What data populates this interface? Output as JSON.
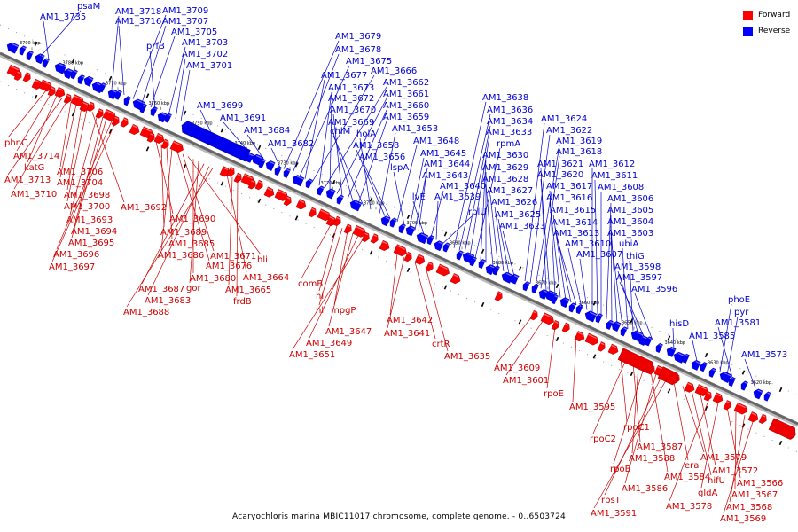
{
  "legend": {
    "forward_label": "Forward",
    "reverse_label": "Reverse",
    "forward_color": "#ff0000",
    "reverse_color": "#0000ff"
  },
  "caption": "Acaryochloris marina MBIC11017 chromosome, complete genome. - 0..6503724",
  "ticks": [
    "3790 kbp",
    "3780 kbp",
    "3770 kbp",
    "3760 kbp",
    "3750 kbp",
    "3740 kbp",
    "3730 kbp",
    "3720 kbp",
    "3710 kbp",
    "3700 kbp",
    "3690 kbp",
    "3680 kbp",
    "3670 kbp",
    "3660 kbp",
    "3650 kbp",
    "3640 kbp",
    "3630 kbp",
    "3620 kbp"
  ],
  "reverse_genes": [
    "psaM",
    "AM1_3735",
    "AM1_3718",
    "AM1_3716",
    "AM1_3709",
    "AM1_3707",
    "AM1_3705",
    "prfB",
    "AM1_3703",
    "AM1_3702",
    "AM1_3701",
    "AM1_3699",
    "AM1_3691",
    "AM1_3684",
    "AM1_3682",
    "AM1_3679",
    "AM1_3678",
    "AM1_3675",
    "AM1_3677",
    "AM1_3666",
    "AM1_3673",
    "AM1_3662",
    "AM1_3672",
    "AM1_3661",
    "AM1_3670",
    "AM1_3660",
    "AM1_3669",
    "AM1_3659",
    "chlM",
    "holA",
    "AM1_3653",
    "AM1_3658",
    "AM1_3656",
    "AM1_3648",
    "lspA",
    "AM1_3645",
    "AM1_3644",
    "AM1_3643",
    "ilvE",
    "AM1_3640",
    "AM1_3639",
    "rplU",
    "AM1_3638",
    "AM1_3636",
    "AM1_3634",
    "AM1_3633",
    "rpmA",
    "AM1_3630",
    "AM1_3629",
    "AM1_3628",
    "AM1_3627",
    "AM1_3626",
    "AM1_3625",
    "AM1_3623",
    "AM1_3624",
    "AM1_3622",
    "AM1_3619",
    "AM1_3618",
    "AM1_3621",
    "AM1_3620",
    "AM1_3617",
    "AM1_3616",
    "AM1_3615",
    "AM1_3614",
    "AM1_3613",
    "AM1_3610",
    "AM1_3607",
    "AM1_3612",
    "AM1_3611",
    "AM1_3608",
    "AM1_3606",
    "AM1_3605",
    "AM1_3604",
    "AM1_3603",
    "ubiA",
    "thiG",
    "AM1_3598",
    "AM1_3597",
    "AM1_3596",
    "hisD",
    "AM1_3585",
    "phoE",
    "pyr",
    "AM1_3581",
    "AM1_3573"
  ],
  "forward_genes": [
    "phnC",
    "AM1_3714",
    "katG",
    "AM1_3713",
    "AM1_3710",
    "AM1_3706",
    "AM1_3704",
    "AM1_3698",
    "AM1_3700",
    "AM1_3692",
    "AM1_3693",
    "AM1_3694",
    "AM1_3695",
    "AM1_3696",
    "AM1_3697",
    "AM1_3690",
    "AM1_3689",
    "AM1_3685",
    "AM1_3686",
    "AM1_3676",
    "AM1_3671",
    "hli",
    "AM1_3680",
    "gor",
    "AM1_3687",
    "AM1_3683",
    "AM1_3688",
    "AM1_3664",
    "AM1_3665",
    "frdB",
    "comB",
    "hli",
    "hli",
    "mpgP",
    "AM1_3647",
    "AM1_3649",
    "AM1_3651",
    "AM1_3642",
    "AM1_3641",
    "crtR",
    "AM1_3635",
    "AM1_3609",
    "AM1_3601",
    "rpoE",
    "AM1_3595",
    "rpoC1",
    "rpoC2",
    "AM1_3587",
    "AM1_3588",
    "rpoB",
    "AM1_3584",
    "AM1_3586",
    "rpsT",
    "AM1_3591",
    "era",
    "AM1_3579",
    "nifU",
    "AM1_3572",
    "AM1_3578",
    "gldA",
    "AM1_3566",
    "AM1_3567",
    "AM1_3568",
    "AM1_3569"
  ]
}
